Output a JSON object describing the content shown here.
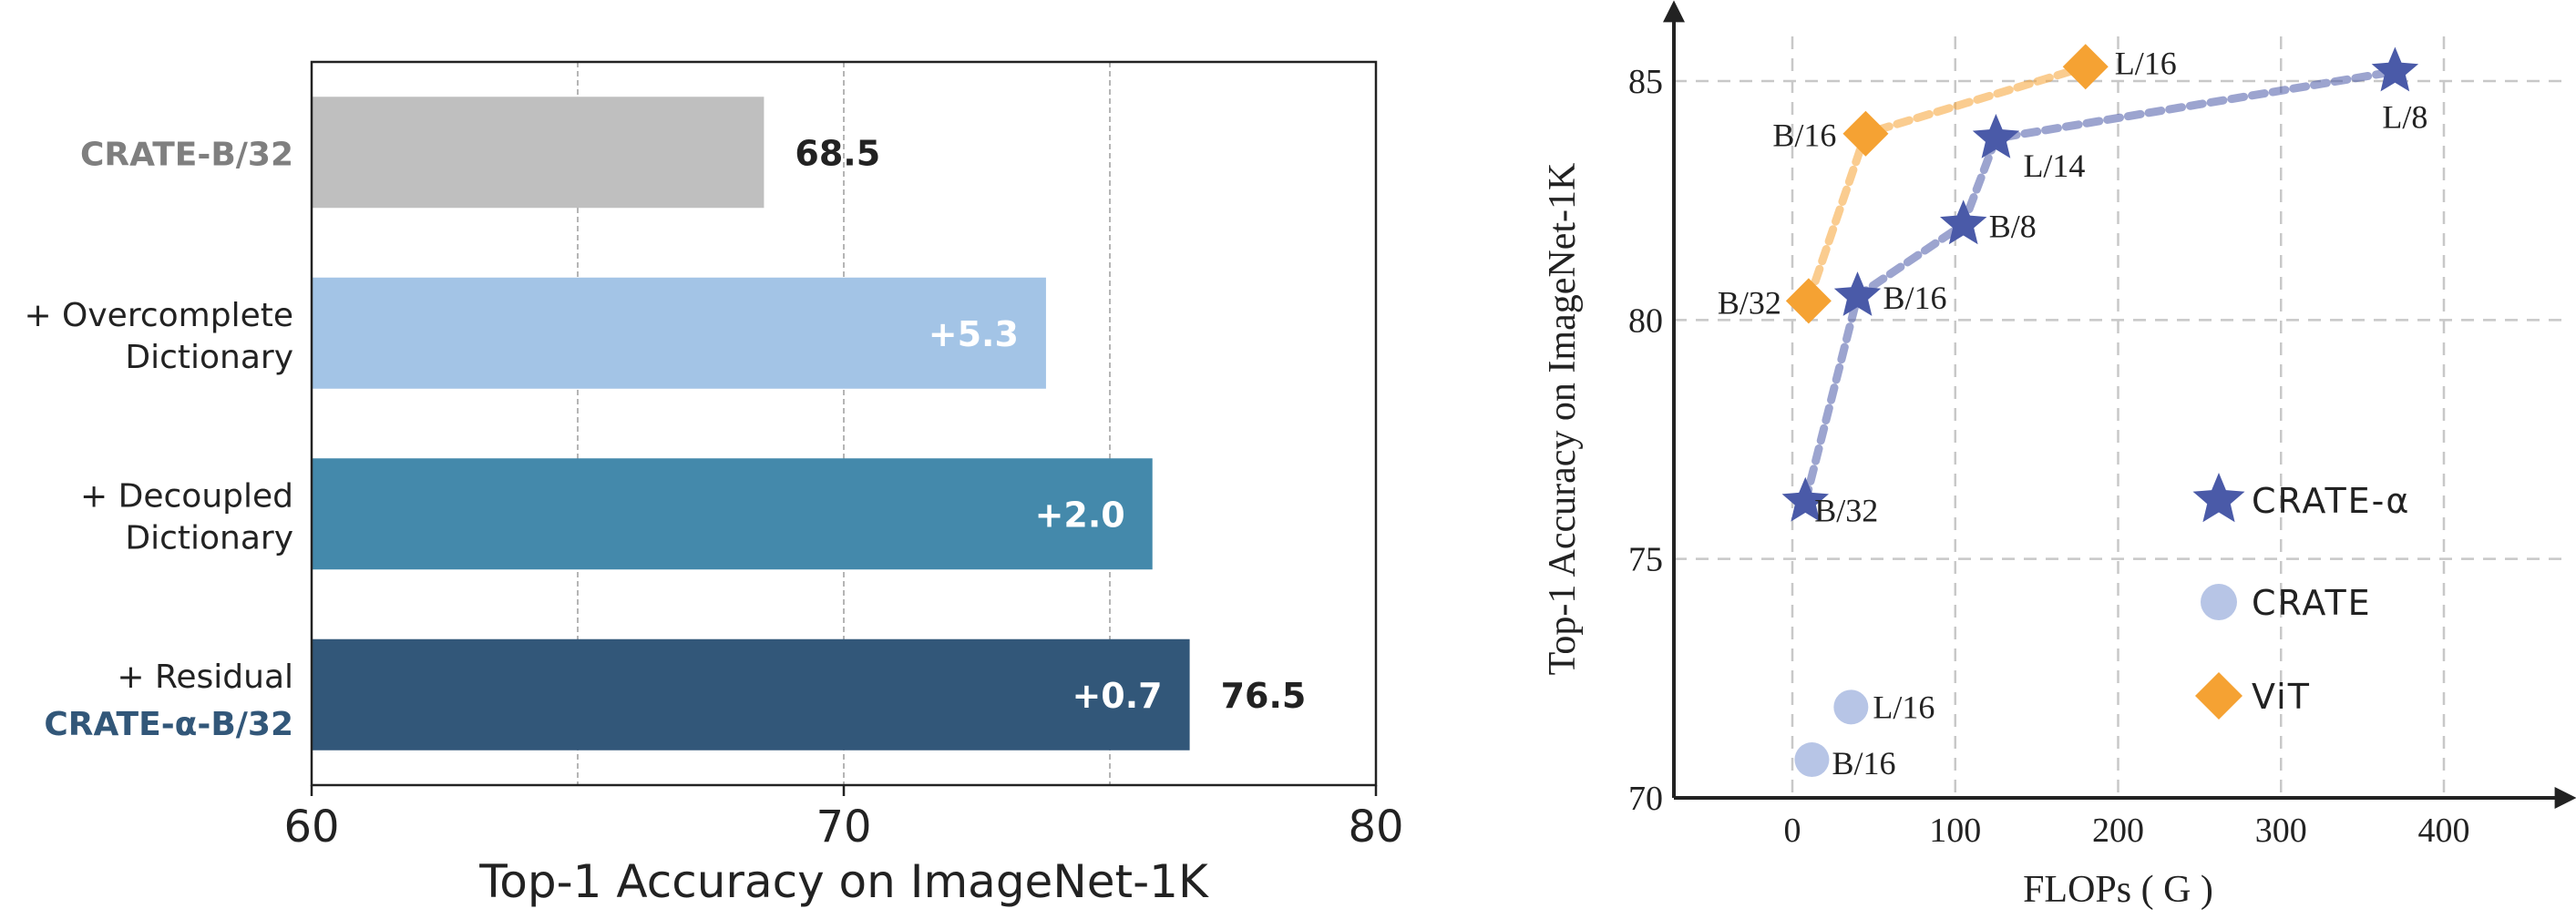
{
  "chart_data": [
    {
      "type": "bar",
      "orientation": "horizontal",
      "categories": [
        {
          "lines": [
            "CRATE-B/32"
          ],
          "style": "baseline"
        },
        {
          "lines": [
            "+ Overcomplete",
            "Dictionary"
          ],
          "style": "plain"
        },
        {
          "lines": [
            "+ Decoupled",
            "Dictionary"
          ],
          "style": "plain"
        },
        {
          "lines": [
            "+ Residual",
            "CRATE-α-B/32"
          ],
          "style": "final"
        }
      ],
      "values": [
        68.5,
        73.8,
        75.8,
        76.5
      ],
      "bar_colors": [
        "#bfbfbf",
        "#a3c4e6",
        "#4489ab",
        "#325779"
      ],
      "inner_labels": [
        "",
        "+5.3",
        "+2.0",
        "+0.7"
      ],
      "outer_labels": [
        "68.5",
        "",
        "",
        "76.5"
      ],
      "xlabel": "Top-1 Accuracy on ImageNet-1K",
      "xlim": [
        60,
        80
      ],
      "xticks": [
        "60",
        "70",
        "80"
      ],
      "grid": "vertical dashed at 65, 70, 75"
    },
    {
      "type": "scatter",
      "xlabel": "FLOPs ( G )",
      "ylabel": "Top-1 Accuracy on ImageNet-1K",
      "xlim": [
        -40,
        450
      ],
      "ylim": [
        70,
        86.5
      ],
      "xticks": [
        "0",
        "100",
        "200",
        "300",
        "400"
      ],
      "yticks": [
        "70",
        "75",
        "80",
        "85"
      ],
      "grid": true,
      "legend_position": "lower-right",
      "series": [
        {
          "name": "CRATE-α",
          "marker": "star",
          "color": "#4a5aa8",
          "connect": true,
          "points": [
            {
              "label": "B/32",
              "x": 8,
              "y": 76.2
            },
            {
              "label": "B/16",
              "x": 40,
              "y": 80.5
            },
            {
              "label": "B/8",
              "x": 105,
              "y": 82.0
            },
            {
              "label": "L/14",
              "x": 125,
              "y": 83.8
            },
            {
              "label": "L/8",
              "x": 370,
              "y": 85.2
            }
          ]
        },
        {
          "name": "CRATE",
          "marker": "circle",
          "color": "#b7c5e6",
          "connect": false,
          "points": [
            {
              "label": "B/16",
              "x": 12,
              "y": 70.8
            },
            {
              "label": "L/16",
              "x": 36,
              "y": 71.9
            }
          ]
        },
        {
          "name": "ViT",
          "marker": "diamond",
          "color": "#f5a233",
          "connect": true,
          "points": [
            {
              "label": "B/32",
              "x": 10,
              "y": 80.4
            },
            {
              "label": "B/16",
              "x": 45,
              "y": 83.9
            },
            {
              "label": "L/16",
              "x": 180,
              "y": 85.3
            }
          ]
        }
      ]
    }
  ]
}
